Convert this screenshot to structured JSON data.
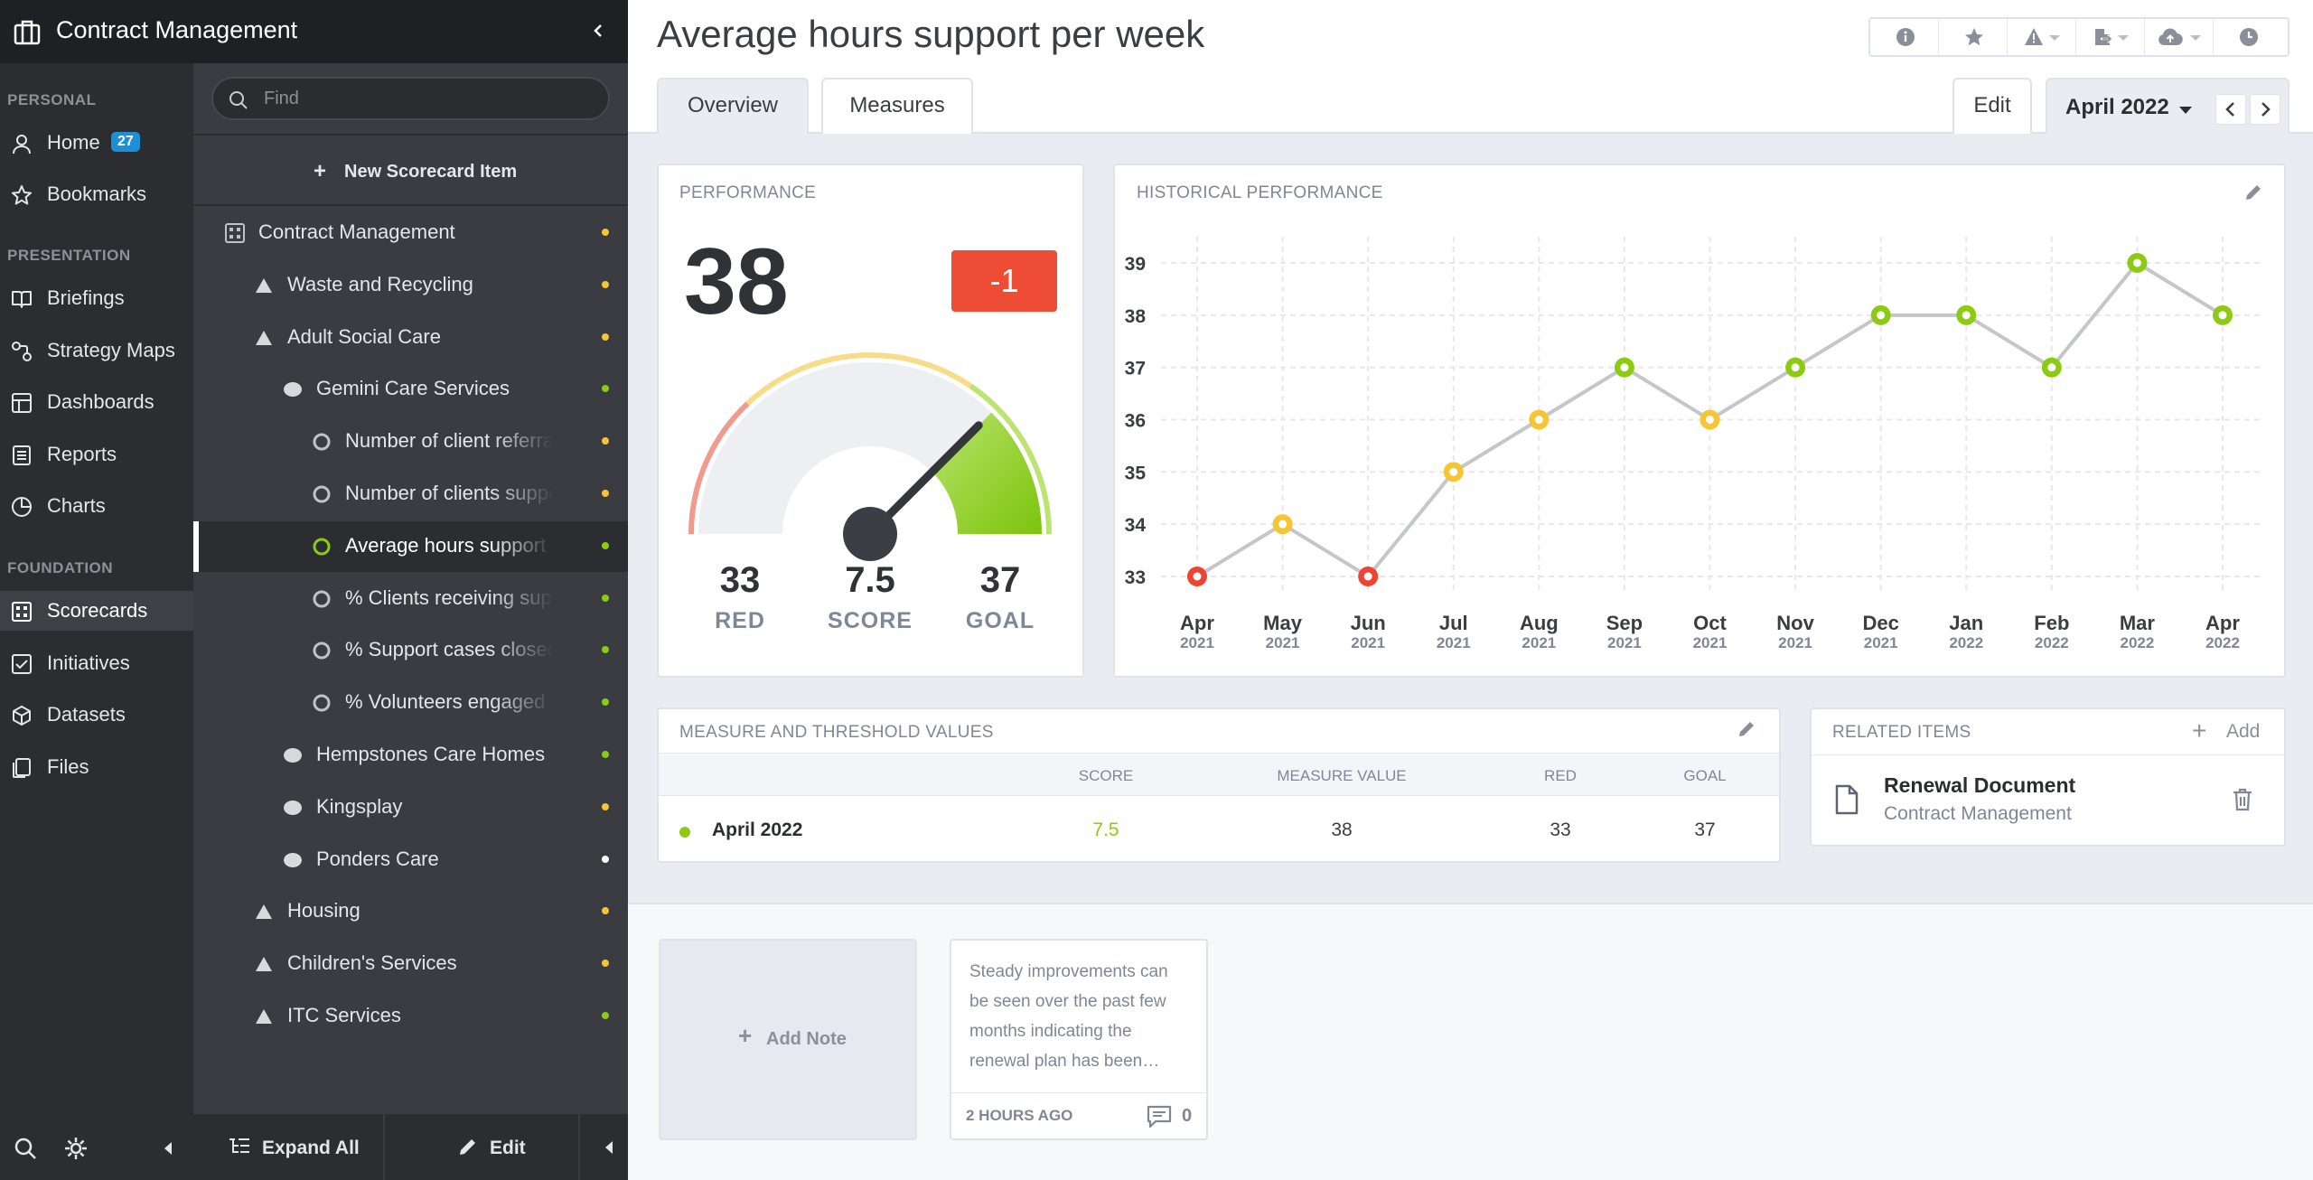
{
  "app": {
    "title": "Contract Management"
  },
  "nav": {
    "personal_label": "PERSONAL",
    "presentation_label": "PRESENTATION",
    "foundation_label": "FOUNDATION",
    "home": {
      "label": "Home",
      "badge": "27"
    },
    "bookmarks": "Bookmarks",
    "briefings": "Briefings",
    "strategy_maps": "Strategy Maps",
    "dashboards": "Dashboards",
    "reports": "Reports",
    "charts": "Charts",
    "scorecards": "Scorecards",
    "initiatives": "Initiatives",
    "datasets": "Datasets",
    "files": "Files"
  },
  "tree": {
    "find_placeholder": "Find",
    "new_item": "New Scorecard Item",
    "rows": [
      {
        "label": "Contract Management",
        "icon": "scorecard-icon",
        "status": "yellow"
      },
      {
        "label": "Waste and Recycling",
        "icon": "triangle-icon",
        "status": "yellow"
      },
      {
        "label": "Adult Social Care",
        "icon": "triangle-icon",
        "status": "yellow"
      },
      {
        "label": "Gemini Care Services",
        "icon": "ellipse-icon",
        "status": "green"
      },
      {
        "label": "Number of client referrals",
        "icon": "measure-icon",
        "status": "yellow"
      },
      {
        "label": "Number of clients supported",
        "icon": "measure-icon",
        "status": "yellow"
      },
      {
        "label": "Average hours support per week",
        "icon": "measure-icon",
        "status": "green"
      },
      {
        "label": "% Clients receiving support",
        "icon": "measure-icon",
        "status": "green"
      },
      {
        "label": "% Support cases closed",
        "icon": "measure-icon",
        "status": "green"
      },
      {
        "label": "% Volunteers engaged per",
        "icon": "measure-icon",
        "status": "green"
      },
      {
        "label": "Hempstones Care Homes",
        "icon": "ellipse-icon",
        "status": "green"
      },
      {
        "label": "Kingsplay",
        "icon": "ellipse-icon",
        "status": "yellow"
      },
      {
        "label": "Ponders Care",
        "icon": "ellipse-icon",
        "status": "white"
      },
      {
        "label": "Housing",
        "icon": "triangle-icon",
        "status": "yellow"
      },
      {
        "label": "Children's Services",
        "icon": "triangle-icon",
        "status": "yellow"
      },
      {
        "label": "ITC Services",
        "icon": "triangle-icon",
        "status": "green"
      }
    ],
    "expand_all": "Expand All",
    "edit": "Edit"
  },
  "page": {
    "title": "Average hours support per week",
    "tabs": [
      "Overview",
      "Measures"
    ],
    "edit": "Edit",
    "period": "April 2022"
  },
  "performance": {
    "title": "PERFORMANCE",
    "value": "38",
    "delta": "-1",
    "red_value": "33",
    "red_label": "RED",
    "score_value": "7.5",
    "score_label": "SCORE",
    "goal_value": "37",
    "goal_label": "GOAL",
    "gauge_level": 0.75
  },
  "historical": {
    "title": "HISTORICAL PERFORMANCE"
  },
  "chart_data": {
    "type": "line",
    "title": "HISTORICAL PERFORMANCE",
    "categories": [
      "Apr 2021",
      "May 2021",
      "Jun 2021",
      "Jul 2021",
      "Aug 2021",
      "Sep 2021",
      "Oct 2021",
      "Nov 2021",
      "Dec 2021",
      "Jan 2022",
      "Feb 2022",
      "Mar 2022",
      "Apr 2022"
    ],
    "x_month": [
      "Apr",
      "May",
      "Jun",
      "Jul",
      "Aug",
      "Sep",
      "Oct",
      "Nov",
      "Dec",
      "Jan",
      "Feb",
      "Mar",
      "Apr"
    ],
    "x_year": [
      "2021",
      "2021",
      "2021",
      "2021",
      "2021",
      "2021",
      "2021",
      "2021",
      "2021",
      "2022",
      "2022",
      "2022",
      "2022"
    ],
    "values": [
      33,
      34,
      33,
      35,
      36,
      37,
      36,
      37,
      38,
      38,
      37,
      39,
      38
    ],
    "status": [
      "red",
      "yellow",
      "red",
      "yellow",
      "yellow",
      "green",
      "yellow",
      "green",
      "green",
      "green",
      "green",
      "green",
      "green"
    ],
    "y_ticks": [
      33,
      34,
      35,
      36,
      37,
      38,
      39
    ],
    "ylim": [
      33,
      39
    ],
    "grid": true
  },
  "thresholds": {
    "title": "MEASURE AND THRESHOLD VALUES",
    "headers": {
      "score": "SCORE",
      "measure_value": "MEASURE VALUE",
      "red": "RED",
      "goal": "GOAL"
    },
    "row": {
      "period": "April 2022",
      "score": "7.5",
      "measure_value": "38",
      "red": "33",
      "goal": "37"
    }
  },
  "related": {
    "title": "RELATED ITEMS",
    "add": "Add",
    "item_title": "Renewal Document",
    "item_subtitle": "Contract Management"
  },
  "notes": {
    "add_note": "Add Note",
    "note_lines": [
      "Steady improvements can",
      "be seen over the past few",
      "months indicating the",
      "renewal plan has been…"
    ],
    "note_time": "2 HOURS AGO",
    "note_comments": "0"
  },
  "colors": {
    "red": "#ee4431",
    "yellow": "#f6c533",
    "green": "#8ccb12",
    "white": "#ffffff",
    "nav_dark": "#2b2d31",
    "accent_blue": "#1d8fd6"
  }
}
